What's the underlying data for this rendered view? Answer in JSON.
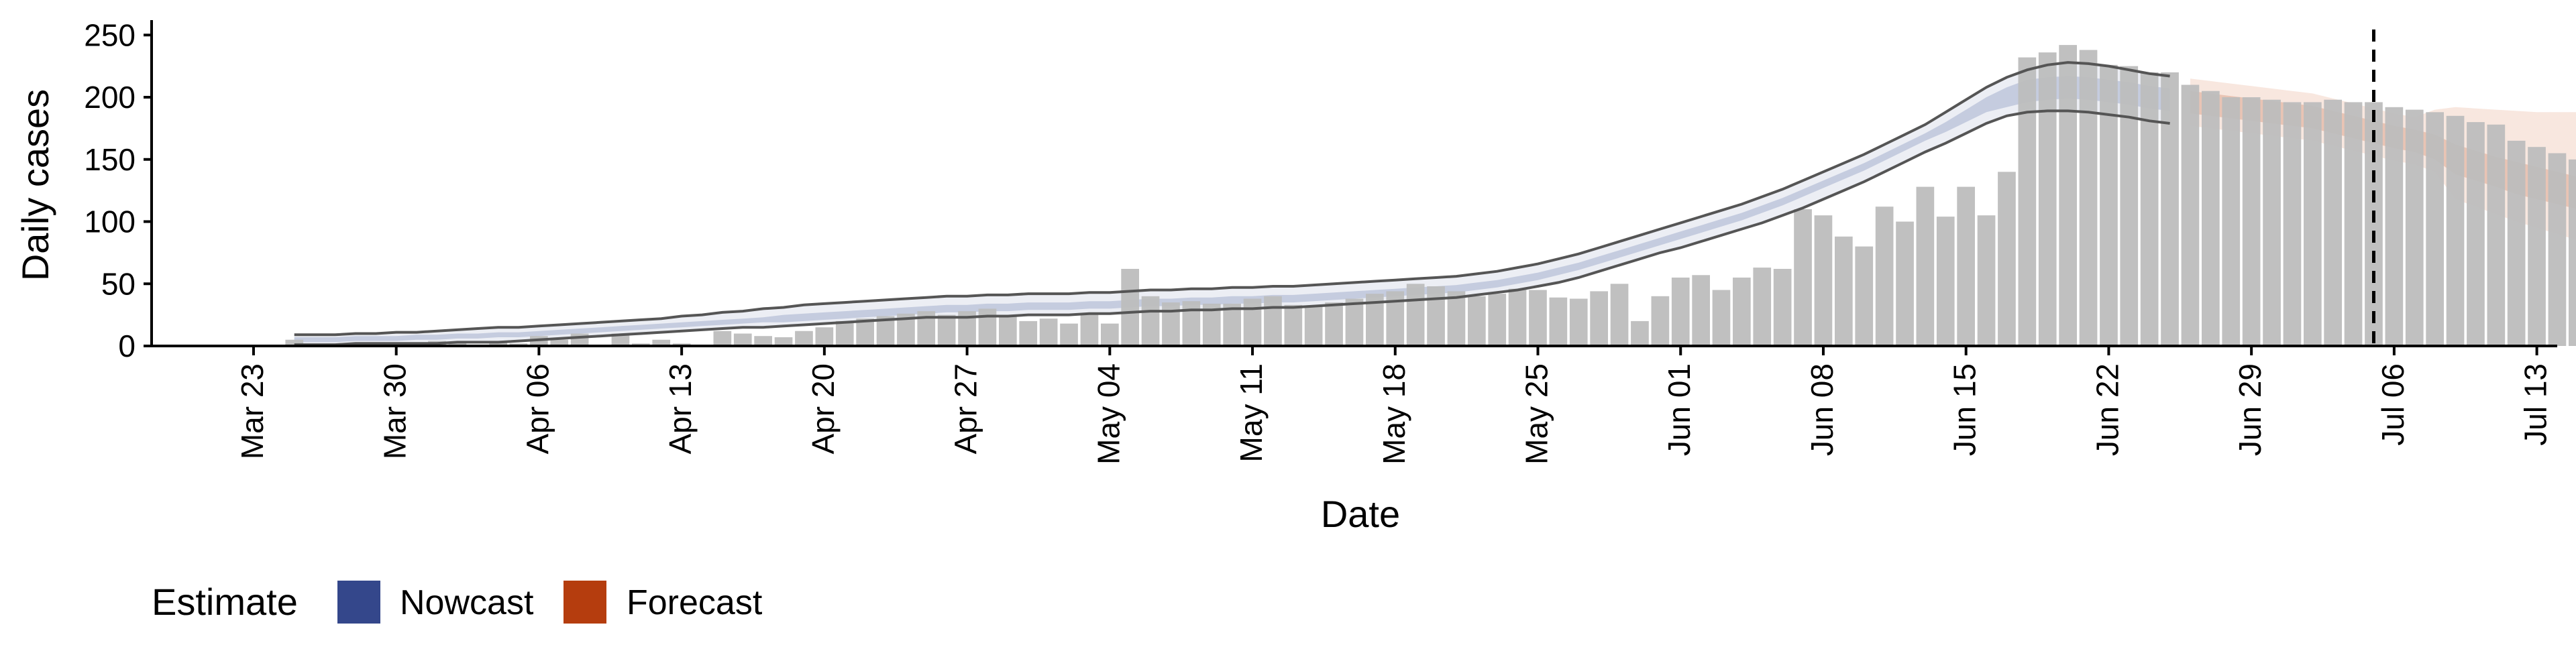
{
  "chart_data": {
    "type": "bar",
    "xlabel": "Date",
    "ylabel": "Daily cases",
    "ylim": [
      0,
      262
    ],
    "yticks": [
      0,
      50,
      100,
      150,
      200,
      250
    ],
    "x_range": [
      "2020-03-18",
      "2020-07-14"
    ],
    "x_ticks": [
      {
        "date": "2020-03-23",
        "label": "Mar 23"
      },
      {
        "date": "2020-03-30",
        "label": "Mar 30"
      },
      {
        "date": "2020-04-06",
        "label": "Apr 06"
      },
      {
        "date": "2020-04-13",
        "label": "Apr 13"
      },
      {
        "date": "2020-04-20",
        "label": "Apr 20"
      },
      {
        "date": "2020-04-27",
        "label": "Apr 27"
      },
      {
        "date": "2020-05-04",
        "label": "May 04"
      },
      {
        "date": "2020-05-11",
        "label": "May 11"
      },
      {
        "date": "2020-05-18",
        "label": "May 18"
      },
      {
        "date": "2020-05-25",
        "label": "May 25"
      },
      {
        "date": "2020-06-01",
        "label": "Jun 01"
      },
      {
        "date": "2020-06-08",
        "label": "Jun 08"
      },
      {
        "date": "2020-06-15",
        "label": "Jun 15"
      },
      {
        "date": "2020-06-22",
        "label": "Jun 22"
      },
      {
        "date": "2020-06-29",
        "label": "Jun 29"
      },
      {
        "date": "2020-07-06",
        "label": "Jul 06"
      },
      {
        "date": "2020-07-13",
        "label": "Jul 13"
      }
    ],
    "reported_cases": {
      "start_date": "2020-03-25",
      "values": [
        5,
        1,
        2,
        1,
        3,
        2,
        2,
        4,
        2,
        1,
        3,
        2,
        8,
        5,
        10,
        1,
        10,
        2,
        5,
        2,
        1,
        12,
        10,
        8,
        7,
        12,
        15,
        20,
        22,
        24,
        26,
        28,
        25,
        28,
        30,
        24,
        20,
        22,
        18,
        25,
        18,
        62,
        40,
        35,
        36,
        34,
        34,
        38,
        40,
        33,
        32,
        35,
        38,
        42,
        44,
        50,
        48,
        44,
        40,
        42,
        46,
        45,
        39,
        38,
        44,
        50,
        20,
        40,
        55,
        57,
        45,
        55,
        63,
        62,
        110,
        105,
        88,
        80,
        112,
        100,
        128,
        104,
        128,
        105,
        140,
        232,
        236,
        242,
        238,
        226,
        225,
        220,
        220,
        210,
        205,
        200,
        200,
        198,
        196,
        196,
        198,
        196,
        196,
        192,
        190,
        188,
        185,
        180,
        178,
        165,
        160,
        155,
        150,
        148
      ]
    },
    "estimates": {
      "start_date": "2020-03-25",
      "nowcast_end": "2020-06-25",
      "forecast_end": "2020-07-09",
      "median": [
        5,
        5,
        5,
        6,
        6,
        6,
        7,
        7,
        8,
        8,
        9,
        9,
        10,
        11,
        12,
        13,
        14,
        15,
        16,
        17,
        18,
        19,
        20,
        21,
        22,
        23,
        24,
        25,
        26,
        27,
        28,
        29,
        30,
        30,
        31,
        31,
        32,
        32,
        32,
        33,
        33,
        34,
        35,
        35,
        36,
        36,
        37,
        37,
        38,
        38,
        39,
        40,
        41,
        42,
        43,
        44,
        45,
        46,
        48,
        50,
        53,
        56,
        60,
        64,
        69,
        74,
        79,
        84,
        89,
        94,
        99,
        104,
        110,
        116,
        123,
        130,
        137,
        144,
        152,
        160,
        168,
        176,
        185,
        194,
        200,
        205,
        207,
        208,
        207,
        205,
        203,
        200,
        198,
        196,
        194,
        192,
        190,
        188,
        186,
        184,
        180,
        176,
        172,
        168,
        165,
        160,
        150,
        145,
        140,
        135,
        131,
        127,
        123,
        120,
        115,
        112,
        108,
        104,
        100,
        95,
        90
      ],
      "inner_lower": [
        3,
        3,
        3,
        4,
        4,
        4,
        5,
        5,
        6,
        6,
        7,
        7,
        8,
        9,
        10,
        11,
        12,
        13,
        14,
        15,
        16,
        17,
        18,
        19,
        19,
        20,
        21,
        22,
        23,
        24,
        25,
        26,
        27,
        27,
        28,
        28,
        29,
        29,
        29,
        30,
        30,
        31,
        32,
        32,
        33,
        33,
        34,
        34,
        35,
        35,
        36,
        37,
        38,
        39,
        40,
        41,
        42,
        43,
        45,
        47,
        50,
        53,
        57,
        61,
        66,
        71,
        76,
        81,
        86,
        91,
        96,
        101,
        107,
        113,
        120,
        127,
        134,
        141,
        149,
        157,
        165,
        172,
        180,
        188,
        192,
        196,
        198,
        199,
        198,
        196,
        194,
        191,
        189,
        187,
        185,
        183,
        181,
        179,
        177,
        175,
        171,
        167,
        163,
        159,
        156,
        150,
        138,
        133,
        128,
        122,
        118,
        114,
        110,
        106,
        101,
        97,
        93,
        89,
        85,
        80,
        75
      ],
      "inner_upper": [
        7,
        7,
        7,
        8,
        8,
        8,
        9,
        9,
        10,
        10,
        11,
        11,
        12,
        13,
        14,
        15,
        16,
        17,
        18,
        19,
        20,
        21,
        22,
        23,
        25,
        26,
        27,
        28,
        29,
        30,
        31,
        32,
        33,
        33,
        34,
        34,
        35,
        35,
        35,
        36,
        36,
        37,
        38,
        38,
        39,
        39,
        40,
        40,
        41,
        41,
        42,
        43,
        44,
        45,
        46,
        47,
        48,
        49,
        51,
        53,
        56,
        59,
        63,
        67,
        72,
        77,
        82,
        87,
        92,
        97,
        102,
        107,
        113,
        119,
        126,
        133,
        140,
        147,
        155,
        163,
        171,
        180,
        190,
        200,
        208,
        214,
        216,
        217,
        216,
        214,
        212,
        209,
        207,
        205,
        203,
        201,
        199,
        197,
        195,
        193,
        189,
        185,
        181,
        177,
        174,
        170,
        162,
        157,
        152,
        148,
        144,
        140,
        136,
        134,
        129,
        127,
        123,
        119,
        115,
        110,
        105
      ],
      "outer_lower": [
        1,
        1,
        1,
        2,
        2,
        2,
        2,
        2,
        3,
        3,
        3,
        4,
        5,
        6,
        7,
        8,
        9,
        10,
        11,
        12,
        13,
        14,
        15,
        15,
        16,
        17,
        18,
        19,
        20,
        21,
        22,
        23,
        23,
        23,
        24,
        24,
        25,
        25,
        25,
        26,
        26,
        27,
        28,
        28,
        29,
        29,
        30,
        30,
        31,
        31,
        32,
        33,
        34,
        35,
        36,
        37,
        38,
        39,
        41,
        43,
        45,
        48,
        51,
        55,
        60,
        65,
        70,
        75,
        79,
        84,
        89,
        94,
        99,
        105,
        111,
        118,
        125,
        132,
        140,
        148,
        156,
        163,
        171,
        179,
        185,
        188,
        189,
        189,
        188,
        186,
        184,
        181,
        179,
        177,
        175,
        173,
        171,
        169,
        167,
        165,
        161,
        157,
        153,
        149,
        146,
        140,
        118,
        112,
        106,
        100,
        95,
        90,
        85,
        80,
        75,
        71,
        67,
        63,
        60,
        56,
        52
      ],
      "outer_upper": [
        9,
        9,
        9,
        10,
        10,
        11,
        11,
        12,
        13,
        14,
        15,
        15,
        16,
        17,
        18,
        19,
        20,
        21,
        22,
        24,
        25,
        27,
        28,
        30,
        31,
        33,
        34,
        35,
        36,
        37,
        38,
        39,
        40,
        40,
        41,
        41,
        42,
        42,
        42,
        43,
        43,
        44,
        45,
        45,
        46,
        46,
        47,
        47,
        48,
        48,
        49,
        50,
        51,
        52,
        53,
        54,
        55,
        56,
        58,
        60,
        63,
        66,
        70,
        74,
        79,
        84,
        89,
        94,
        99,
        104,
        109,
        114,
        120,
        126,
        133,
        140,
        147,
        154,
        162,
        170,
        178,
        188,
        198,
        208,
        216,
        222,
        226,
        228,
        227,
        225,
        222,
        219,
        217,
        215,
        213,
        211,
        209,
        207,
        205,
        203,
        199,
        195,
        191,
        187,
        184,
        190,
        192,
        191,
        190,
        189,
        188,
        188,
        188,
        188,
        188,
        188,
        188,
        188,
        188,
        188,
        188
      ]
    },
    "forecast_label_date": "2020-07-05",
    "legend": {
      "title": "Estimate",
      "items": [
        {
          "label": "Nowcast",
          "color": "#34478b"
        },
        {
          "label": "Forecast",
          "color": "#b53d0e"
        }
      ]
    },
    "colors": {
      "bars": "#bdbdbd",
      "nowcast_inner": "#c5ccdf",
      "nowcast_outer": "#eceef4",
      "forecast_inner": "#e9c4b4",
      "forecast_outer": "#f8e7df",
      "bound_line": "#555555"
    }
  }
}
